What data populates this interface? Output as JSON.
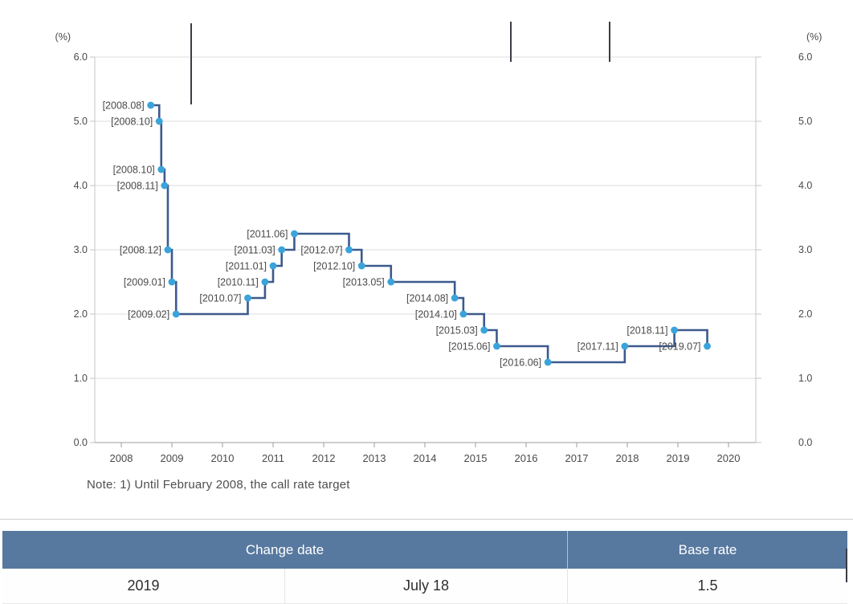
{
  "chart": {
    "y_axis_unit": "(%)",
    "note": "Note: 1) Until February 2008, the call rate target"
  },
  "chart_data": {
    "type": "line",
    "subtype": "step-after",
    "title": "",
    "xlabel": "",
    "ylabel": "(%)",
    "ylim": [
      0.0,
      6.0
    ],
    "xlim": [
      2007.5,
      2020.5
    ],
    "grid": true,
    "y_ticks": [
      "6.0",
      "5.0",
      "4.0",
      "3.0",
      "2.0",
      "1.0",
      "0.0"
    ],
    "y_tick_values": [
      6,
      5,
      4,
      3,
      2,
      1,
      0
    ],
    "x_ticks": [
      "2008",
      "2009",
      "2010",
      "2011",
      "2012",
      "2013",
      "2014",
      "2015",
      "2016",
      "2017",
      "2018",
      "2019",
      "2020"
    ],
    "x_tick_values": [
      2008,
      2009,
      2010,
      2011,
      2012,
      2013,
      2014,
      2015,
      2016,
      2017,
      2018,
      2019,
      2020
    ],
    "points": [
      {
        "label": "[2008.08]",
        "year": 2008.583,
        "rate": 5.25
      },
      {
        "label": "[2008.10]",
        "year": 2008.75,
        "rate": 5.0
      },
      {
        "label": "[2008.10]",
        "year": 2008.79,
        "rate": 4.25
      },
      {
        "label": "[2008.11]",
        "year": 2008.855,
        "rate": 4.0
      },
      {
        "label": "[2008.12]",
        "year": 2008.92,
        "rate": 3.0
      },
      {
        "label": "[2009.01]",
        "year": 2009.0,
        "rate": 2.5
      },
      {
        "label": "[2009.02]",
        "year": 2009.083,
        "rate": 2.0
      },
      {
        "label": "[2010.07]",
        "year": 2010.5,
        "rate": 2.25
      },
      {
        "label": "[2010.11]",
        "year": 2010.84,
        "rate": 2.5
      },
      {
        "label": "[2011.01]",
        "year": 2011.0,
        "rate": 2.75
      },
      {
        "label": "[2011.03]",
        "year": 2011.17,
        "rate": 3.0
      },
      {
        "label": "[2011.06]",
        "year": 2011.42,
        "rate": 3.25
      },
      {
        "label": "[2012.07]",
        "year": 2012.5,
        "rate": 3.0
      },
      {
        "label": "[2012.10]",
        "year": 2012.75,
        "rate": 2.75
      },
      {
        "label": "[2013.05]",
        "year": 2013.33,
        "rate": 2.5
      },
      {
        "label": "[2014.08]",
        "year": 2014.59,
        "rate": 2.25
      },
      {
        "label": "[2014.10]",
        "year": 2014.76,
        "rate": 2.0
      },
      {
        "label": "[2015.03]",
        "year": 2015.17,
        "rate": 1.75
      },
      {
        "label": "[2015.06]",
        "year": 2015.42,
        "rate": 1.5
      },
      {
        "label": "[2016.06]",
        "year": 2016.43,
        "rate": 1.25
      },
      {
        "label": "[2017.11]",
        "year": 2017.95,
        "rate": 1.5
      },
      {
        "label": "[2018.11]",
        "year": 2018.93,
        "rate": 1.75
      },
      {
        "label": "[2019.07]",
        "year": 2019.58,
        "rate": 1.5
      }
    ]
  },
  "table": {
    "header": {
      "change_date": "Change date",
      "base_rate": "Base rate"
    },
    "rows": [
      {
        "year": "2019",
        "date": "July 18",
        "rate": "1.5"
      }
    ]
  },
  "colors": {
    "line": "#3d5a8c",
    "dot": "#3aa4da",
    "grid": "#dcdcdc",
    "frame": "#c4c4c4",
    "axis": "#9e9e9e",
    "tick_text": "#4a4a4a",
    "label_text": "#4a4a4a",
    "header_bg": "#57789f",
    "artifact": "#3c3c46"
  }
}
